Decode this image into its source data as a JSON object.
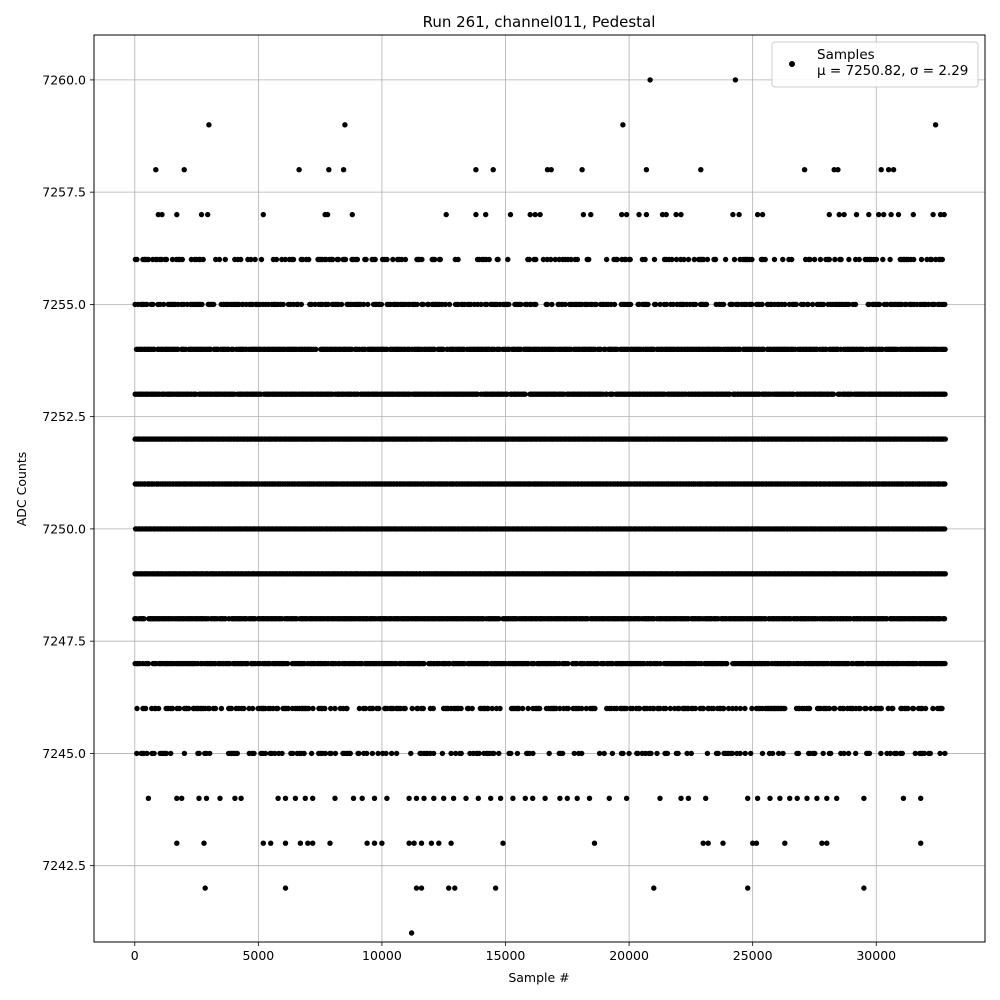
{
  "chart_data": {
    "type": "scatter",
    "title": "Run 261, channel011, Pedestal",
    "xlabel": "Sample #",
    "ylabel": "ADC Counts",
    "xlim": [
      -1650,
      34400
    ],
    "ylim": [
      7240.8,
      7261.0
    ],
    "xticks": [
      0,
      5000,
      10000,
      15000,
      20000,
      25000,
      30000
    ],
    "yticks": [
      7242.5,
      7245.0,
      7247.5,
      7250.0,
      7252.5,
      7255.0,
      7257.5,
      7260.0
    ],
    "xtick_labels": [
      "0",
      "5000",
      "10000",
      "15000",
      "20000",
      "25000",
      "30000"
    ],
    "ytick_labels": [
      "7242.5",
      "7245.0",
      "7247.5",
      "7250.0",
      "7252.5",
      "7255.0",
      "7257.5",
      "7260.0"
    ],
    "grid": true,
    "legend_position": "top-right",
    "marker_color": "#000000",
    "n_samples": 32768,
    "series": [
      {
        "name": "Samples",
        "legend_line2": "μ = 7250.82, σ = 2.29",
        "dense_rows": [
          {
            "y": 7256,
            "x_range": [
              0,
              32768
            ],
            "density": 0.35
          },
          {
            "y": 7255,
            "x_range": [
              0,
              32768
            ],
            "density": 0.6
          },
          {
            "y": 7254,
            "x_range": [
              0,
              32768
            ],
            "density": 0.9
          },
          {
            "y": 7253,
            "x_range": [
              0,
              32768
            ],
            "density": 0.95
          },
          {
            "y": 7252,
            "x_range": [
              0,
              32768
            ],
            "density": 1.0
          },
          {
            "y": 7251,
            "x_range": [
              0,
              32768
            ],
            "density": 1.0
          },
          {
            "y": 7250,
            "x_range": [
              0,
              32768
            ],
            "density": 1.0
          },
          {
            "y": 7249,
            "x_range": [
              0,
              32768
            ],
            "density": 1.0
          },
          {
            "y": 7248,
            "x_range": [
              0,
              32768
            ],
            "density": 0.95
          },
          {
            "y": 7247,
            "x_range": [
              0,
              32768
            ],
            "density": 0.85
          },
          {
            "y": 7246,
            "x_range": [
              0,
              32768
            ],
            "density": 0.55
          },
          {
            "y": 7245,
            "x_range": [
              0,
              32768
            ],
            "density": 0.3
          }
        ],
        "points": [
          [
            850,
            7258
          ],
          [
            2000,
            7258
          ],
          [
            6650,
            7258
          ],
          [
            7850,
            7258
          ],
          [
            8450,
            7258
          ],
          [
            13800,
            7258
          ],
          [
            14500,
            7258
          ],
          [
            16700,
            7258
          ],
          [
            16850,
            7258
          ],
          [
            18100,
            7258
          ],
          [
            20700,
            7258
          ],
          [
            22900,
            7258
          ],
          [
            27100,
            7258
          ],
          [
            28300,
            7258
          ],
          [
            28450,
            7258
          ],
          [
            30200,
            7258
          ],
          [
            30500,
            7258
          ],
          [
            30700,
            7258
          ],
          [
            3000,
            7259
          ],
          [
            8500,
            7259
          ],
          [
            19750,
            7259
          ],
          [
            32400,
            7259
          ],
          [
            20850,
            7260
          ],
          [
            24300,
            7260
          ],
          [
            950,
            7257
          ],
          [
            1100,
            7257
          ],
          [
            1700,
            7257
          ],
          [
            2700,
            7257
          ],
          [
            2950,
            7257
          ],
          [
            5200,
            7257
          ],
          [
            7700,
            7257
          ],
          [
            7800,
            7257
          ],
          [
            8800,
            7257
          ],
          [
            12600,
            7257
          ],
          [
            13800,
            7257
          ],
          [
            14200,
            7257
          ],
          [
            15200,
            7257
          ],
          [
            16000,
            7257
          ],
          [
            16200,
            7257
          ],
          [
            16400,
            7257
          ],
          [
            18150,
            7257
          ],
          [
            18450,
            7257
          ],
          [
            19700,
            7257
          ],
          [
            19900,
            7257
          ],
          [
            20400,
            7257
          ],
          [
            20700,
            7257
          ],
          [
            21350,
            7257
          ],
          [
            21500,
            7257
          ],
          [
            21900,
            7257
          ],
          [
            22100,
            7257
          ],
          [
            24200,
            7257
          ],
          [
            24450,
            7257
          ],
          [
            25200,
            7257
          ],
          [
            25400,
            7257
          ],
          [
            28100,
            7257
          ],
          [
            28500,
            7257
          ],
          [
            28700,
            7257
          ],
          [
            29200,
            7257
          ],
          [
            29700,
            7257
          ],
          [
            30100,
            7257
          ],
          [
            30300,
            7257
          ],
          [
            30600,
            7257
          ],
          [
            30900,
            7257
          ],
          [
            31500,
            7257
          ],
          [
            32300,
            7257
          ],
          [
            32600,
            7257
          ],
          [
            32750,
            7257
          ],
          [
            550,
            7244
          ],
          [
            1700,
            7244
          ],
          [
            1900,
            7244
          ],
          [
            2600,
            7244
          ],
          [
            2900,
            7244
          ],
          [
            3450,
            7244
          ],
          [
            4050,
            7244
          ],
          [
            4300,
            7244
          ],
          [
            5800,
            7244
          ],
          [
            6100,
            7244
          ],
          [
            6500,
            7244
          ],
          [
            6900,
            7244
          ],
          [
            7200,
            7244
          ],
          [
            8100,
            7244
          ],
          [
            8850,
            7244
          ],
          [
            9200,
            7244
          ],
          [
            9700,
            7244
          ],
          [
            10200,
            7244
          ],
          [
            11100,
            7244
          ],
          [
            11400,
            7244
          ],
          [
            11700,
            7244
          ],
          [
            12100,
            7244
          ],
          [
            12500,
            7244
          ],
          [
            12900,
            7244
          ],
          [
            13400,
            7244
          ],
          [
            13900,
            7244
          ],
          [
            14400,
            7244
          ],
          [
            14800,
            7244
          ],
          [
            15300,
            7244
          ],
          [
            15800,
            7244
          ],
          [
            16100,
            7244
          ],
          [
            16600,
            7244
          ],
          [
            17200,
            7244
          ],
          [
            17500,
            7244
          ],
          [
            17900,
            7244
          ],
          [
            18400,
            7244
          ],
          [
            19200,
            7244
          ],
          [
            19900,
            7244
          ],
          [
            21250,
            7244
          ],
          [
            22100,
            7244
          ],
          [
            22400,
            7244
          ],
          [
            23100,
            7244
          ],
          [
            24800,
            7244
          ],
          [
            25200,
            7244
          ],
          [
            25700,
            7244
          ],
          [
            26100,
            7244
          ],
          [
            26500,
            7244
          ],
          [
            26800,
            7244
          ],
          [
            27200,
            7244
          ],
          [
            27600,
            7244
          ],
          [
            28000,
            7244
          ],
          [
            28400,
            7244
          ],
          [
            29500,
            7244
          ],
          [
            31100,
            7244
          ],
          [
            31800,
            7244
          ],
          [
            1700,
            7243
          ],
          [
            2800,
            7243
          ],
          [
            5200,
            7243
          ],
          [
            5500,
            7243
          ],
          [
            6100,
            7243
          ],
          [
            6700,
            7243
          ],
          [
            7000,
            7243
          ],
          [
            7200,
            7243
          ],
          [
            7900,
            7243
          ],
          [
            9400,
            7243
          ],
          [
            9700,
            7243
          ],
          [
            10000,
            7243
          ],
          [
            11100,
            7243
          ],
          [
            11300,
            7243
          ],
          [
            11600,
            7243
          ],
          [
            12000,
            7243
          ],
          [
            12300,
            7243
          ],
          [
            12800,
            7243
          ],
          [
            14900,
            7243
          ],
          [
            18600,
            7243
          ],
          [
            23000,
            7243
          ],
          [
            23200,
            7243
          ],
          [
            23800,
            7243
          ],
          [
            25000,
            7243
          ],
          [
            25150,
            7243
          ],
          [
            26300,
            7243
          ],
          [
            27800,
            7243
          ],
          [
            28000,
            7243
          ],
          [
            31800,
            7243
          ],
          [
            2850,
            7242
          ],
          [
            6100,
            7242
          ],
          [
            11400,
            7242
          ],
          [
            11600,
            7242
          ],
          [
            12700,
            7242
          ],
          [
            12950,
            7242
          ],
          [
            14600,
            7242
          ],
          [
            21000,
            7242
          ],
          [
            24800,
            7242
          ],
          [
            29500,
            7242
          ],
          [
            11200,
            7241
          ]
        ]
      }
    ]
  }
}
